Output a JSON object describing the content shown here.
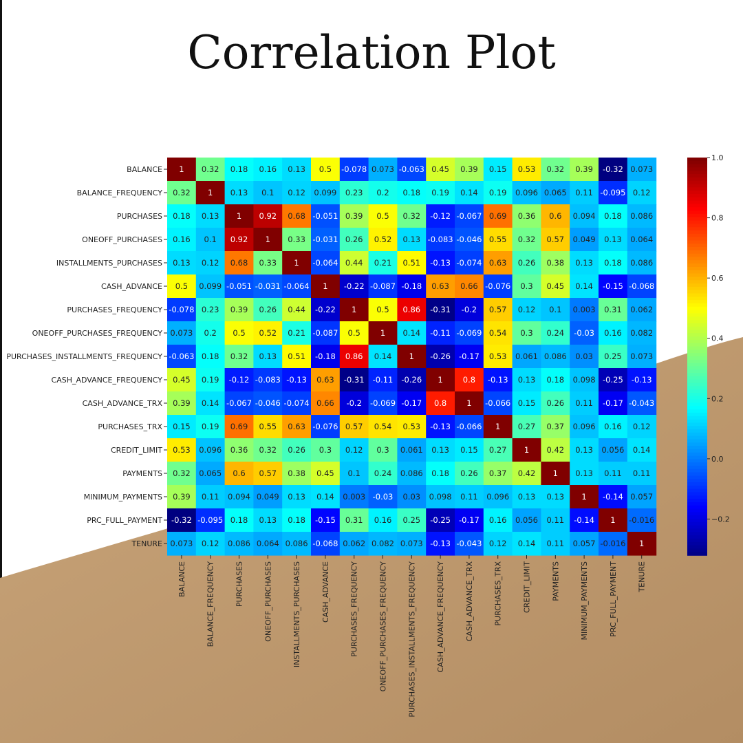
{
  "page": {
    "title": "Correlation Plot"
  },
  "chart_data": {
    "type": "heatmap",
    "title": "",
    "colormap": "jet",
    "labels": [
      "BALANCE",
      "BALANCE_FREQUENCY",
      "PURCHASES",
      "ONEOFF_PURCHASES",
      "INSTALLMENTS_PURCHASES",
      "CASH_ADVANCE",
      "PURCHASES_FREQUENCY",
      "ONEOFF_PURCHASES_FREQUENCY",
      "PURCHASES_INSTALLMENTS_FREQUENCY",
      "CASH_ADVANCE_FREQUENCY",
      "CASH_ADVANCE_TRX",
      "PURCHASES_TRX",
      "CREDIT_LIMIT",
      "PAYMENTS",
      "MINIMUM_PAYMENTS",
      "PRC_FULL_PAYMENT",
      "TENURE"
    ],
    "matrix": [
      [
        "1",
        "0.32",
        "0.18",
        "0.16",
        "0.13",
        "0.5",
        "-0.078",
        "0.073",
        "-0.063",
        "0.45",
        "0.39",
        "0.15",
        "0.53",
        "0.32",
        "0.39",
        "-0.32",
        "0.073"
      ],
      [
        "0.32",
        "1",
        "0.13",
        "0.1",
        "0.12",
        "0.099",
        "0.23",
        "0.2",
        "0.18",
        "0.19",
        "0.14",
        "0.19",
        "0.096",
        "0.065",
        "0.11",
        "-0.095",
        "0.12"
      ],
      [
        "0.18",
        "0.13",
        "1",
        "0.92",
        "0.68",
        "-0.051",
        "0.39",
        "0.5",
        "0.32",
        "-0.12",
        "-0.067",
        "0.69",
        "0.36",
        "0.6",
        "0.094",
        "0.18",
        "0.086"
      ],
      [
        "0.16",
        "0.1",
        "0.92",
        "1",
        "0.33",
        "-0.031",
        "0.26",
        "0.52",
        "0.13",
        "-0.083",
        "-0.046",
        "0.55",
        "0.32",
        "0.57",
        "0.049",
        "0.13",
        "0.064"
      ],
      [
        "0.13",
        "0.12",
        "0.68",
        "0.33",
        "1",
        "-0.064",
        "0.44",
        "0.21",
        "0.51",
        "-0.13",
        "-0.074",
        "0.63",
        "0.26",
        "0.38",
        "0.13",
        "0.18",
        "0.086"
      ],
      [
        "0.5",
        "0.099",
        "-0.051",
        "-0.031",
        "-0.064",
        "1",
        "-0.22",
        "-0.087",
        "-0.18",
        "0.63",
        "0.66",
        "-0.076",
        "0.3",
        "0.45",
        "0.14",
        "-0.15",
        "-0.068"
      ],
      [
        "-0.078",
        "0.23",
        "0.39",
        "0.26",
        "0.44",
        "-0.22",
        "1",
        "0.5",
        "0.86",
        "-0.31",
        "-0.2",
        "0.57",
        "0.12",
        "0.1",
        "0.003",
        "0.31",
        "0.062"
      ],
      [
        "0.073",
        "0.2",
        "0.5",
        "0.52",
        "0.21",
        "-0.087",
        "0.5",
        "1",
        "0.14",
        "-0.11",
        "-0.069",
        "0.54",
        "0.3",
        "0.24",
        "-0.03",
        "0.16",
        "0.082"
      ],
      [
        "-0.063",
        "0.18",
        "0.32",
        "0.13",
        "0.51",
        "-0.18",
        "0.86",
        "0.14",
        "1",
        "-0.26",
        "-0.17",
        "0.53",
        "0.061",
        "0.086",
        "0.03",
        "0.25",
        "0.073"
      ],
      [
        "0.45",
        "0.19",
        "-0.12",
        "-0.083",
        "-0.13",
        "0.63",
        "-0.31",
        "-0.11",
        "-0.26",
        "1",
        "0.8",
        "-0.13",
        "0.13",
        "0.18",
        "0.098",
        "-0.25",
        "-0.13"
      ],
      [
        "0.39",
        "0.14",
        "-0.067",
        "-0.046",
        "-0.074",
        "0.66",
        "-0.2",
        "-0.069",
        "-0.17",
        "0.8",
        "1",
        "-0.066",
        "0.15",
        "0.26",
        "0.11",
        "-0.17",
        "-0.043"
      ],
      [
        "0.15",
        "0.19",
        "0.69",
        "0.55",
        "0.63",
        "-0.076",
        "0.57",
        "0.54",
        "0.53",
        "-0.13",
        "-0.066",
        "1",
        "0.27",
        "0.37",
        "0.096",
        "0.16",
        "0.12"
      ],
      [
        "0.53",
        "0.096",
        "0.36",
        "0.32",
        "0.26",
        "0.3",
        "0.12",
        "0.3",
        "0.061",
        "0.13",
        "0.15",
        "0.27",
        "1",
        "0.42",
        "0.13",
        "0.056",
        "0.14"
      ],
      [
        "0.32",
        "0.065",
        "0.6",
        "0.57",
        "0.38",
        "0.45",
        "0.1",
        "0.24",
        "0.086",
        "0.18",
        "0.26",
        "0.37",
        "0.42",
        "1",
        "0.13",
        "0.11",
        "0.11"
      ],
      [
        "0.39",
        "0.11",
        "0.094",
        "0.049",
        "0.13",
        "0.14",
        "0.003",
        "-0.03",
        "0.03",
        "0.098",
        "0.11",
        "0.096",
        "0.13",
        "0.13",
        "1",
        "-0.14",
        "0.057"
      ],
      [
        "-0.32",
        "-0.095",
        "0.18",
        "0.13",
        "0.18",
        "-0.15",
        "0.31",
        "0.16",
        "0.25",
        "-0.25",
        "-0.17",
        "0.16",
        "0.056",
        "0.11",
        "-0.14",
        "1",
        "-0.016"
      ],
      [
        "0.073",
        "0.12",
        "0.086",
        "0.064",
        "0.086",
        "-0.068",
        "0.062",
        "0.082",
        "0.073",
        "-0.13",
        "-0.043",
        "0.12",
        "0.14",
        "0.11",
        "0.057",
        "-0.016",
        "1"
      ]
    ],
    "colorbar": {
      "range": [
        -0.32,
        1.0
      ],
      "ticks": [
        -0.2,
        0.0,
        0.2,
        0.4,
        0.6,
        0.8,
        1.0
      ],
      "tick_labels": [
        "−0.2",
        "0.0",
        "0.2",
        "0.4",
        "0.6",
        "0.8",
        "1.0"
      ]
    }
  }
}
